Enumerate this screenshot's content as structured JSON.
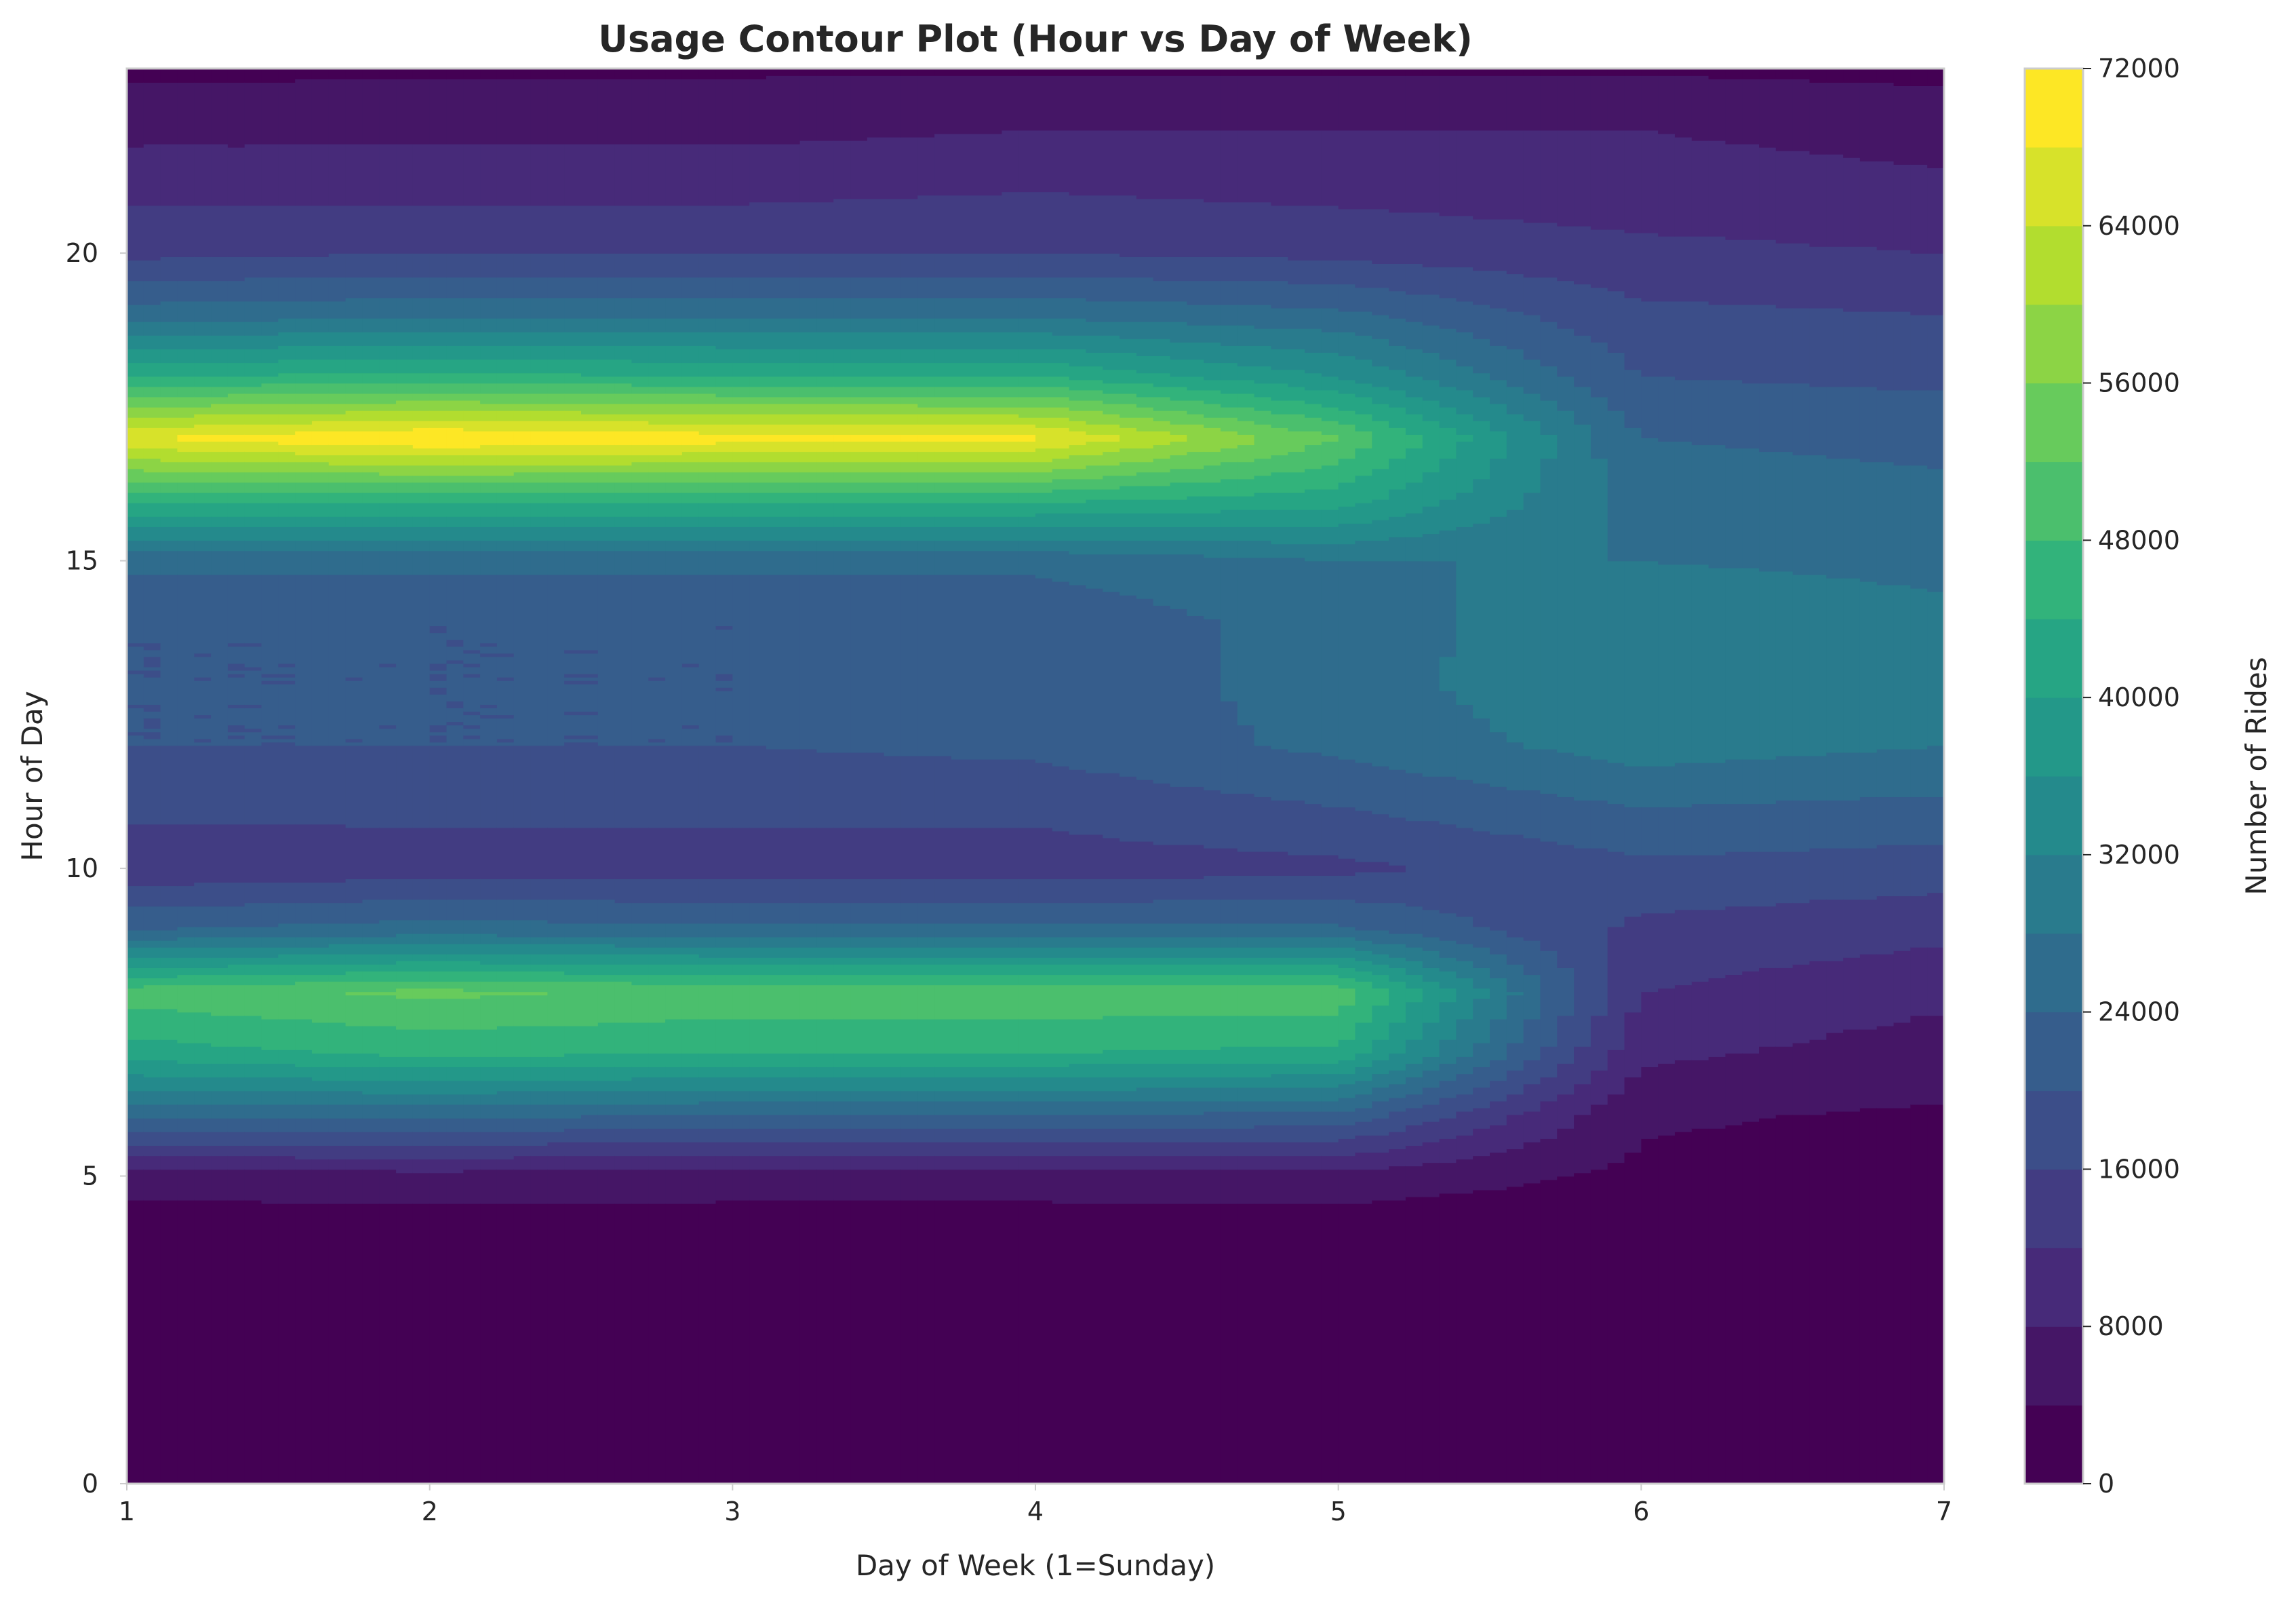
{
  "chart_data": {
    "type": "contour",
    "title": "Usage Contour Plot (Hour vs Day of Week)",
    "xlabel": "Day of Week (1=Sunday)",
    "ylabel": "Hour of Day",
    "colorbar_label": "Number of Rides",
    "colormap": "viridis",
    "xlim": [
      1,
      7
    ],
    "ylim": [
      0,
      23
    ],
    "x_ticks": [
      1,
      2,
      3,
      4,
      5,
      6,
      7
    ],
    "y_ticks": [
      0,
      5,
      10,
      15,
      20
    ],
    "colorbar_range": [
      0,
      72000
    ],
    "colorbar_ticks": [
      0,
      8000,
      16000,
      24000,
      32000,
      40000,
      48000,
      56000,
      64000,
      72000
    ],
    "levels": [
      0,
      4000,
      8000,
      12000,
      16000,
      20000,
      24000,
      28000,
      32000,
      36000,
      40000,
      44000,
      48000,
      52000,
      56000,
      60000,
      64000,
      68000,
      72000
    ],
    "grid": false,
    "x": [
      1,
      2,
      3,
      4,
      5,
      6,
      7
    ],
    "y": [
      0,
      1,
      2,
      3,
      4,
      5,
      6,
      7,
      8,
      9,
      10,
      11,
      12,
      13,
      14,
      15,
      16,
      17,
      18,
      19,
      20,
      21,
      22,
      23
    ],
    "z": [
      [
        2000,
        2000,
        2000,
        2000,
        2000,
        2400,
        3000
      ],
      [
        1500,
        1500,
        1500,
        1500,
        1500,
        1800,
        2200
      ],
      [
        1000,
        1000,
        1000,
        1000,
        1000,
        1200,
        1500
      ],
      [
        800,
        800,
        800,
        800,
        800,
        900,
        1100
      ],
      [
        900,
        900,
        900,
        900,
        900,
        1000,
        1200
      ],
      [
        6000,
        6500,
        6200,
        6200,
        6500,
        3200,
        2500
      ],
      [
        25000,
        25000,
        24000,
        24000,
        23000,
        4500,
        3500
      ],
      [
        42000,
        45000,
        44000,
        44000,
        43000,
        9000,
        6000
      ],
      [
        50000,
        53000,
        51000,
        51000,
        51000,
        12000,
        9000
      ],
      [
        24000,
        26000,
        25000,
        25000,
        25000,
        15000,
        13000
      ],
      [
        13000,
        14000,
        14000,
        14000,
        15000,
        19000,
        18000
      ],
      [
        17000,
        17000,
        17000,
        17000,
        20000,
        24000,
        23000
      ],
      [
        20000,
        20000,
        20000,
        21000,
        25000,
        30000,
        28000
      ],
      [
        20000,
        20000,
        20000,
        21000,
        26000,
        32000,
        30000
      ],
      [
        20000,
        20000,
        20000,
        21000,
        26000,
        31000,
        29000
      ],
      [
        25000,
        25000,
        25000,
        25000,
        28000,
        28000,
        27000
      ],
      [
        45000,
        45000,
        45000,
        45000,
        42000,
        26000,
        25000
      ],
      [
        68000,
        72000,
        70000,
        69000,
        52000,
        24000,
        23000
      ],
      [
        44000,
        45000,
        44000,
        44000,
        36000,
        20000,
        19000
      ],
      [
        26000,
        27000,
        27000,
        27000,
        25000,
        17000,
        16000
      ],
      [
        15000,
        16000,
        16000,
        16000,
        15000,
        13000,
        12000
      ],
      [
        11000,
        11000,
        11000,
        12000,
        11000,
        10000,
        9000
      ],
      [
        7000,
        7000,
        7000,
        8000,
        8000,
        8000,
        6500
      ],
      [
        3000,
        3500,
        3500,
        3500,
        3500,
        3500,
        3000
      ]
    ]
  }
}
